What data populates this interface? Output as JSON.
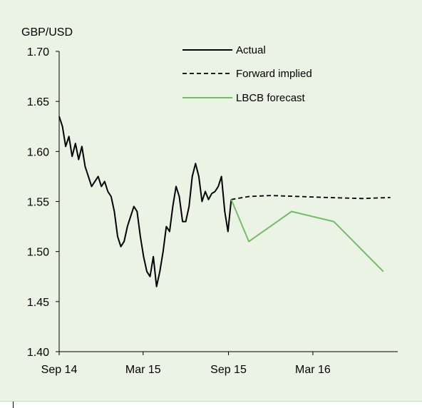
{
  "chart_data": {
    "type": "line",
    "ylabel": "GBP/USD",
    "ylim": [
      1.4,
      1.7
    ],
    "yticks": [
      "1.70",
      "1.65",
      "1.60",
      "1.55",
      "1.50",
      "1.45",
      "1.40"
    ],
    "xticks": [
      "Sep 14",
      "Mar 15",
      "Sep 15",
      "Mar 16"
    ],
    "legend_position": "top-center",
    "grid": false,
    "series": [
      {
        "name": "Actual",
        "style": "solid",
        "color": "#000000",
        "x": [
          "2014-09-01",
          "2014-09-08",
          "2014-09-15",
          "2014-09-22",
          "2014-09-29",
          "2014-10-06",
          "2014-10-13",
          "2014-10-20",
          "2014-10-27",
          "2014-11-03",
          "2014-11-10",
          "2014-11-17",
          "2014-11-24",
          "2014-12-01",
          "2014-12-08",
          "2014-12-15",
          "2014-12-22",
          "2014-12-29",
          "2015-01-05",
          "2015-01-12",
          "2015-01-19",
          "2015-01-26",
          "2015-02-02",
          "2015-02-09",
          "2015-02-16",
          "2015-02-23",
          "2015-03-02",
          "2015-03-09",
          "2015-03-16",
          "2015-03-23",
          "2015-03-30",
          "2015-04-06",
          "2015-04-13",
          "2015-04-20",
          "2015-04-27",
          "2015-05-04",
          "2015-05-11",
          "2015-05-18",
          "2015-05-25",
          "2015-06-01",
          "2015-06-08",
          "2015-06-15",
          "2015-06-22",
          "2015-06-29",
          "2015-07-06",
          "2015-07-13",
          "2015-07-20",
          "2015-07-27",
          "2015-08-03",
          "2015-08-10",
          "2015-08-17",
          "2015-08-24",
          "2015-08-31",
          "2015-09-07"
        ],
        "values": [
          1.635,
          1.625,
          1.605,
          1.615,
          1.595,
          1.608,
          1.592,
          1.605,
          1.585,
          1.575,
          1.565,
          1.57,
          1.575,
          1.565,
          1.57,
          1.56,
          1.555,
          1.54,
          1.515,
          1.505,
          1.51,
          1.525,
          1.535,
          1.545,
          1.54,
          1.515,
          1.495,
          1.48,
          1.475,
          1.495,
          1.465,
          1.48,
          1.5,
          1.525,
          1.52,
          1.545,
          1.565,
          1.555,
          1.53,
          1.53,
          1.545,
          1.575,
          1.588,
          1.575,
          1.55,
          1.56,
          1.552,
          1.558,
          1.56,
          1.565,
          1.575,
          1.54,
          1.52,
          1.552
        ]
      },
      {
        "name": "Forward implied",
        "style": "dashed",
        "color": "#000000",
        "x": [
          "2015-09-07",
          "2015-10-15",
          "2015-12-01",
          "2016-02-01",
          "2016-04-01",
          "2016-06-15",
          "2016-08-15"
        ],
        "values": [
          1.552,
          1.555,
          1.556,
          1.555,
          1.554,
          1.553,
          1.554
        ]
      },
      {
        "name": "LBCB forecast",
        "style": "solid",
        "color": "#77bb6a",
        "x": [
          "2015-09-07",
          "2015-10-15",
          "2016-01-15",
          "2016-04-15",
          "2016-07-31"
        ],
        "values": [
          1.552,
          1.51,
          1.54,
          1.53,
          1.48
        ]
      }
    ]
  }
}
